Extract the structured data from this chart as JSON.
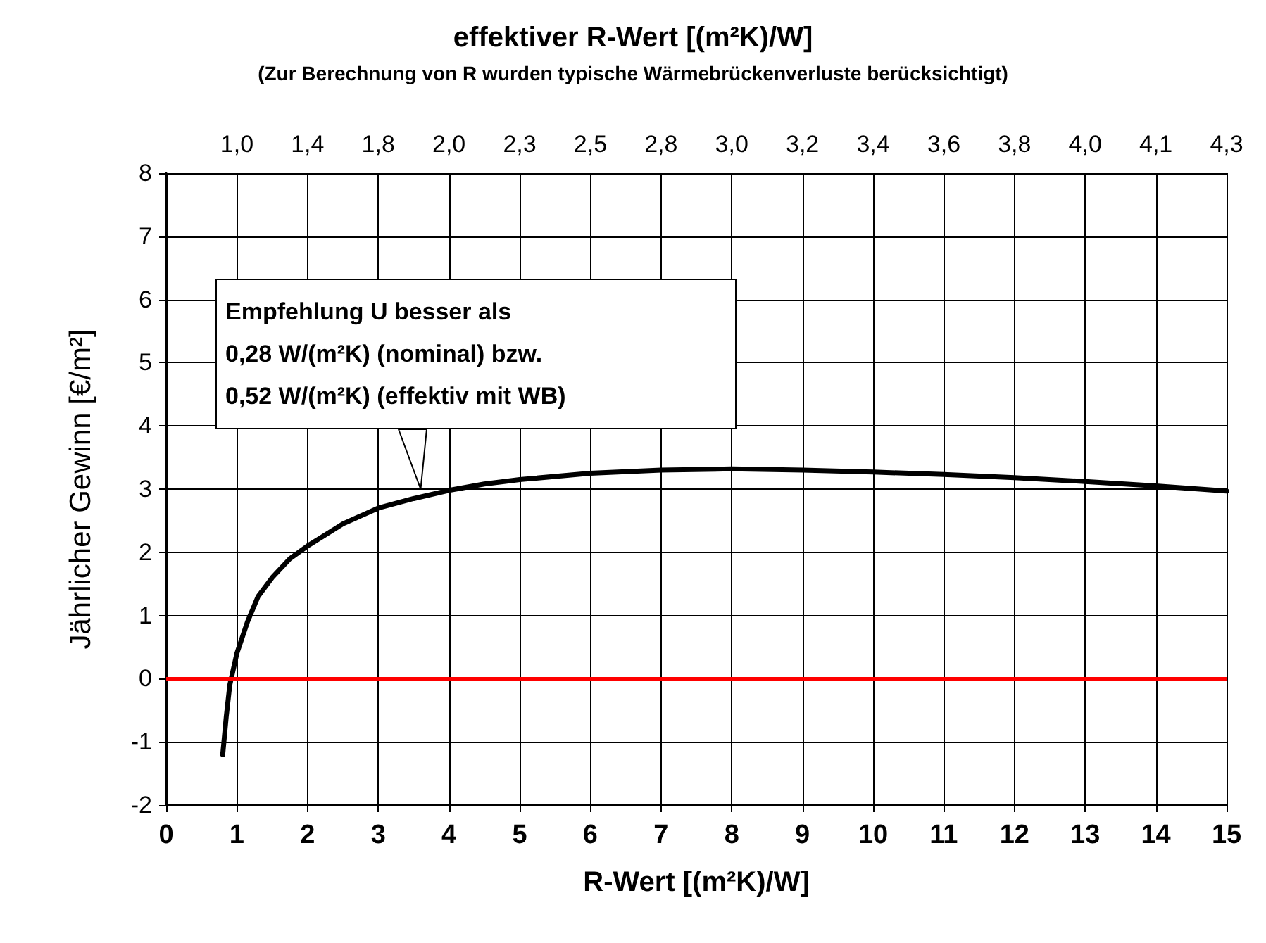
{
  "chart_data": {
    "type": "line",
    "subtitle": "(Zur Berechnung von R wurden typische Wärmebrückenverluste berücksichtigt)",
    "xlabel": "R-Wert [(m²K)/W]",
    "x2label": "effektiver R-Wert [(m²K)/W]",
    "ylabel": "Jährlicher Gewinn [€/m²]",
    "xlim": [
      0,
      15
    ],
    "xticks": [
      0,
      1,
      2,
      3,
      4,
      5,
      6,
      7,
      8,
      9,
      10,
      11,
      12,
      13,
      14,
      15
    ],
    "ylim": [
      -2,
      8
    ],
    "yticks": [
      -2,
      -1,
      0,
      1,
      2,
      3,
      4,
      5,
      6,
      7,
      8
    ],
    "grid": true,
    "marker": "none",
    "line_style": "solid",
    "series": [
      {
        "color": "#000000",
        "x": [
          0.8,
          0.85,
          0.9,
          1.0,
          1.15,
          1.3,
          1.5,
          1.75,
          2,
          2.5,
          3,
          3.5,
          4,
          4.5,
          5,
          6,
          7,
          8,
          9,
          10,
          11,
          12,
          13,
          14,
          15
        ],
        "values": [
          -1.2,
          -0.6,
          -0.1,
          0.4,
          0.9,
          1.3,
          1.6,
          1.9,
          2.1,
          2.45,
          2.7,
          2.85,
          2.98,
          3.08,
          3.15,
          3.25,
          3.3,
          3.32,
          3.3,
          3.27,
          3.23,
          3.18,
          3.12,
          3.05,
          2.97
        ]
      }
    ],
    "ref_lines": [
      {
        "axis": "y",
        "value": 0,
        "color": "#ff0000",
        "line_style": "solid"
      }
    ],
    "annotations": [
      "1,0",
      "1,4",
      "1,8",
      "2,0",
      "2,3",
      "2,5",
      "2,8",
      "3,0",
      "3,2",
      "3,4",
      "3,6",
      "3,8",
      "4,0",
      "4,1",
      "4,3",
      {
        "text": "Empfehlung U besser als\n0,28 W/(m²K) (nominal) bzw.\n0,52 W/(m²K) (effektiv mit WB)",
        "x": 3.6,
        "y": 3.0
      }
    ]
  }
}
